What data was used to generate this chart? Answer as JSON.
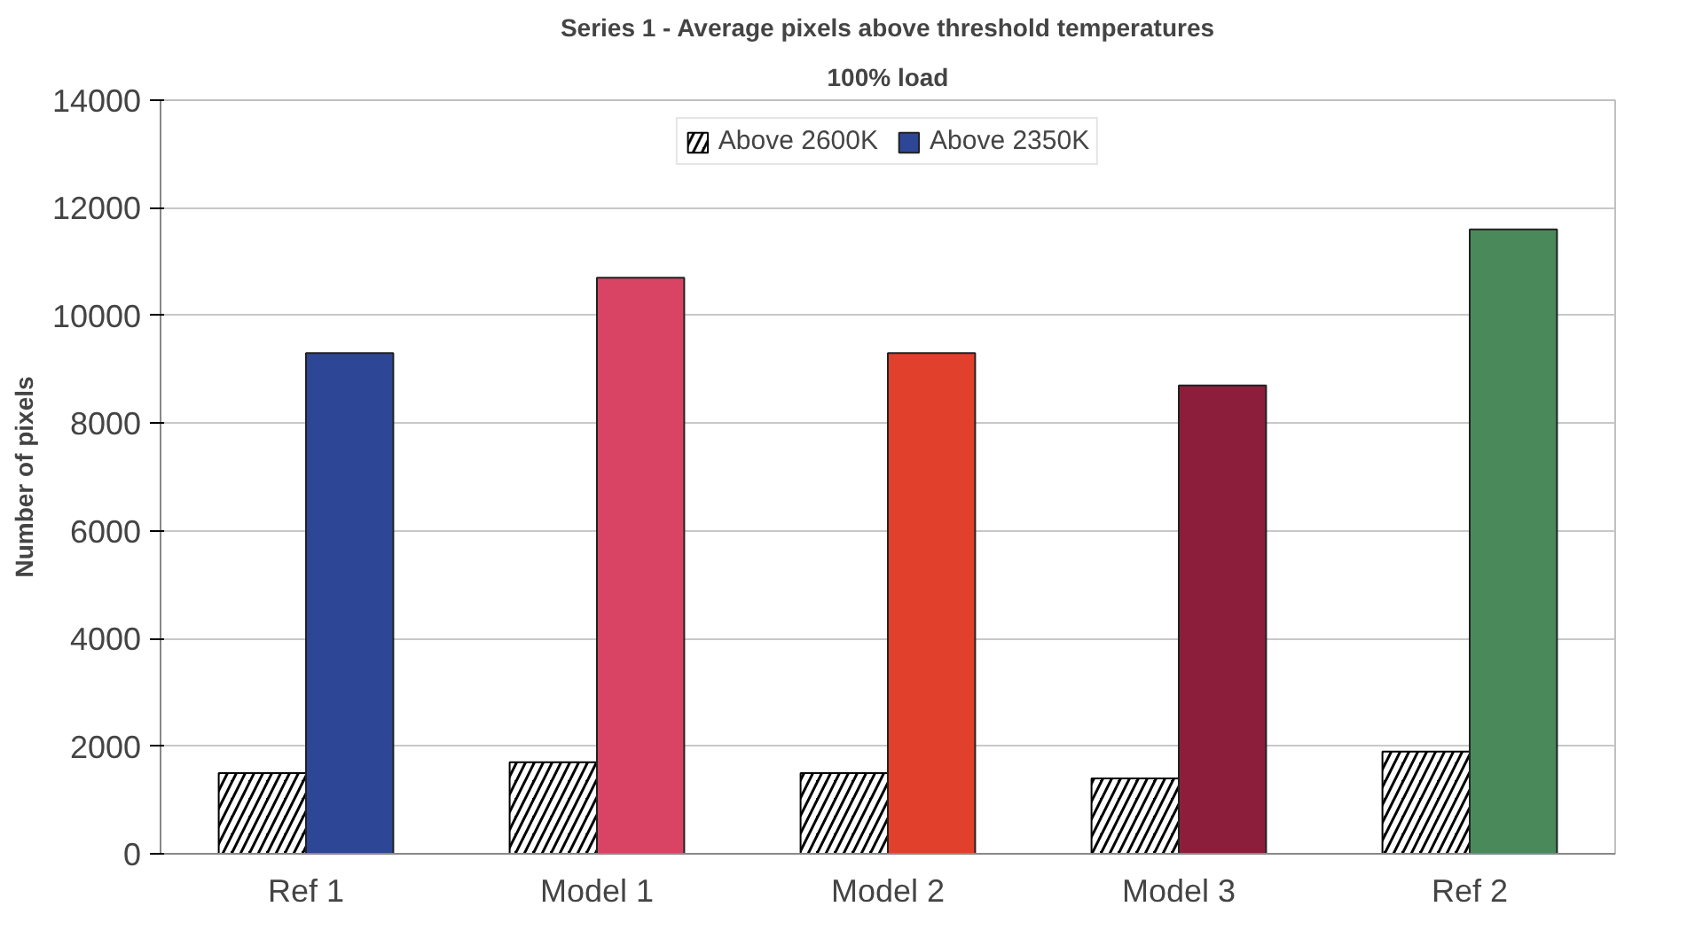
{
  "chart_data": {
    "type": "bar",
    "title": "Series 1 - Average pixels above threshold temperatures",
    "subtitle": "100% load",
    "ylabel": "Number of pixels",
    "categories": [
      "Ref 1",
      "Model 1",
      "Model 2",
      "Model 3",
      "Ref 2"
    ],
    "series": [
      {
        "name": "Above 2600K",
        "color": "#000000",
        "values": [
          1500,
          1700,
          1500,
          1400,
          1900
        ]
      },
      {
        "name": "Above 2350K",
        "colors": [
          "#2e4696",
          "#d94464",
          "#e0402c",
          "#8c1e3c",
          "#4a8a5a"
        ],
        "values": [
          9300,
          10700,
          9300,
          8700,
          11600
        ]
      }
    ],
    "ylim": [
      0,
      14000
    ],
    "yticks": [
      0,
      2000,
      4000,
      6000,
      8000,
      10000,
      12000,
      14000
    ],
    "grid": "y",
    "legend": "top"
  }
}
